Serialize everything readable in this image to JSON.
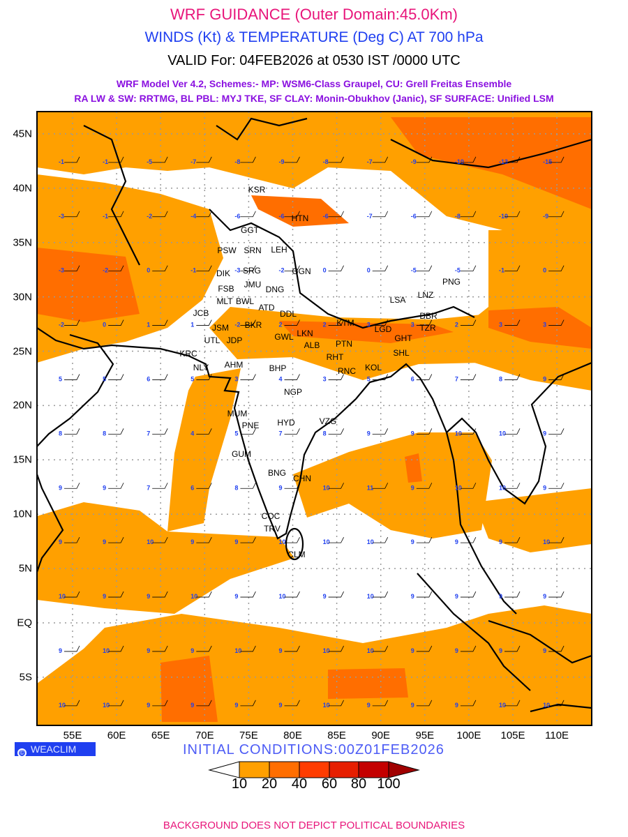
{
  "header": {
    "title": "WRF GUIDANCE (Outer Domain:45.0Km)",
    "subtitle": "WINDS (Kt) & TEMPERATURE (Deg C) AT 700 hPa",
    "valid": "VALID For: 04FEB2026 at 0530 IST /0000 UTC",
    "model_line1": "WRF Model Ver 4.2, Schemes:- MP: WSM6-Class Graupel, CU: Grell Freitas Ensemble",
    "model_line2": "RA LW & SW: RRTMG, BL PBL: MYJ TKE, SF CLAY: Monin-Obukhov (Janic), SF SURFACE: Unified LSM"
  },
  "axes": {
    "lon_labels": [
      "55E",
      "60E",
      "65E",
      "70E",
      "75E",
      "80E",
      "85E",
      "90E",
      "95E",
      "100E",
      "105E",
      "110E"
    ],
    "lat_labels": [
      "45N",
      "40N",
      "35N",
      "30N",
      "25N",
      "20N",
      "15N",
      "10N",
      "5N",
      "EQ",
      "5S"
    ]
  },
  "cities": [
    "KSR",
    "HTN",
    "GGT",
    "PSW",
    "SRN",
    "LEH",
    "DIK",
    "SRG",
    "JMU",
    "GGN",
    "FSB",
    "MLT",
    "BWL",
    "ATD",
    "DNG",
    "JCB",
    "BKR",
    "DDL",
    "LSA",
    "LNZ",
    "PNG",
    "JSM",
    "JDP",
    "UTL",
    "GWL",
    "LKN",
    "KTM",
    "ALB",
    "PTN",
    "LGD",
    "GHT",
    "TZR",
    "DBR",
    "SHL",
    "RHT",
    "RNC",
    "KRC",
    "NLY",
    "AHM",
    "BHP",
    "KOL",
    "NGP",
    "MUM",
    "PNE",
    "HYD",
    "VZG",
    "GUM",
    "BNG",
    "CHN",
    "COC",
    "TRV",
    "CLM"
  ],
  "temperature_grid": {
    "lons": [
      55,
      60,
      65,
      70,
      75,
      80,
      85,
      90,
      95,
      100,
      105,
      110
    ],
    "lats": [
      42.5,
      37.5,
      32.5,
      27.5,
      22.5,
      17.5,
      12.5,
      7.5,
      2.5,
      -2.5,
      -7.5
    ],
    "values": [
      [
        -1,
        -1,
        -5,
        -7,
        -8,
        -9,
        -8,
        -7,
        -9,
        -10,
        -13,
        -15
      ],
      [
        -3,
        -1,
        -2,
        -4,
        -6,
        -6,
        -6,
        -7,
        -6,
        -8,
        -10,
        -9
      ],
      [
        -3,
        -2,
        0,
        -1,
        -3,
        -2,
        0,
        0,
        -5,
        -5,
        -1,
        0
      ],
      [
        -2,
        0,
        1,
        1,
        -2,
        2,
        2,
        3,
        3,
        2,
        3,
        3
      ],
      [
        5,
        5,
        6,
        5,
        3,
        4,
        3,
        5,
        6,
        7,
        8,
        9
      ],
      [
        8,
        8,
        7,
        4,
        5,
        7,
        8,
        9,
        9,
        10,
        10,
        9
      ],
      [
        9,
        9,
        7,
        6,
        8,
        9,
        10,
        11,
        9,
        10,
        10,
        9
      ],
      [
        9,
        9,
        10,
        9,
        9,
        10,
        10,
        10,
        9,
        9,
        9,
        10
      ],
      [
        10,
        9,
        9,
        10,
        9,
        10,
        9,
        10,
        9,
        9,
        9,
        9
      ],
      [
        9,
        10,
        9,
        9,
        10,
        9,
        10,
        10,
        9,
        9,
        9,
        9
      ],
      [
        10,
        10,
        9,
        9,
        9,
        9,
        10,
        9,
        9,
        9,
        10,
        10
      ]
    ]
  },
  "footer": {
    "brand": "WEACLIM",
    "copyright_symbol": "©",
    "initial_conditions": "INITIAL CONDITIONS:00Z01FEB2026",
    "disclaimer": "BACKGROUND DOES NOT DEPICT POLITICAL BOUNDARIES"
  },
  "colorbar": {
    "labels": [
      "10",
      "20",
      "40",
      "60",
      "80",
      "100"
    ],
    "colors": [
      "#ffffff",
      "#ffa000",
      "#ff6e00",
      "#ff3c00",
      "#e61e00",
      "#c40000",
      "#a00000"
    ]
  },
  "colors": {
    "shade1": "#ffa000",
    "shade2": "#ff6e00",
    "shade3": "#ff3c00",
    "temp_text": "#1f3ff0"
  }
}
